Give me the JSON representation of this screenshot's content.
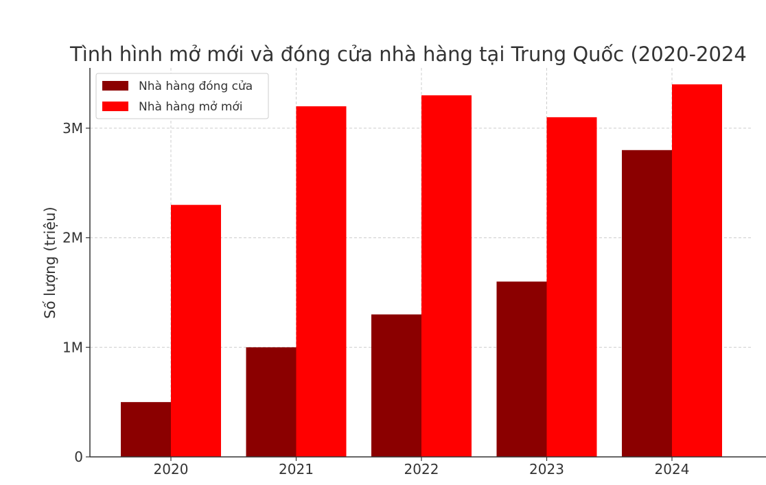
{
  "chart_data": {
    "type": "bar",
    "title": "Tình hình mở mới và đóng cửa nhà hàng tại Trung Quốc (2020-2024",
    "xlabel": "",
    "ylabel": "Số lượng (triệu)",
    "categories": [
      "2020",
      "2021",
      "2022",
      "2023",
      "2024"
    ],
    "series": [
      {
        "name": "Nhà hàng đóng cửa",
        "color": "#8b0000",
        "values": [
          0.5,
          1.0,
          1.3,
          1.6,
          2.8
        ]
      },
      {
        "name": "Nhà hàng mở mới",
        "color": "#ff0000",
        "values": [
          2.3,
          3.2,
          3.3,
          3.1,
          3.4
        ]
      }
    ],
    "ylim": [
      0,
      3.55
    ],
    "yticks": [
      {
        "value": 0,
        "label": "0"
      },
      {
        "value": 1,
        "label": "1M"
      },
      {
        "value": 2,
        "label": "2M"
      },
      {
        "value": 3,
        "label": "3M"
      }
    ],
    "grid": true,
    "legend_position": "top-left"
  }
}
